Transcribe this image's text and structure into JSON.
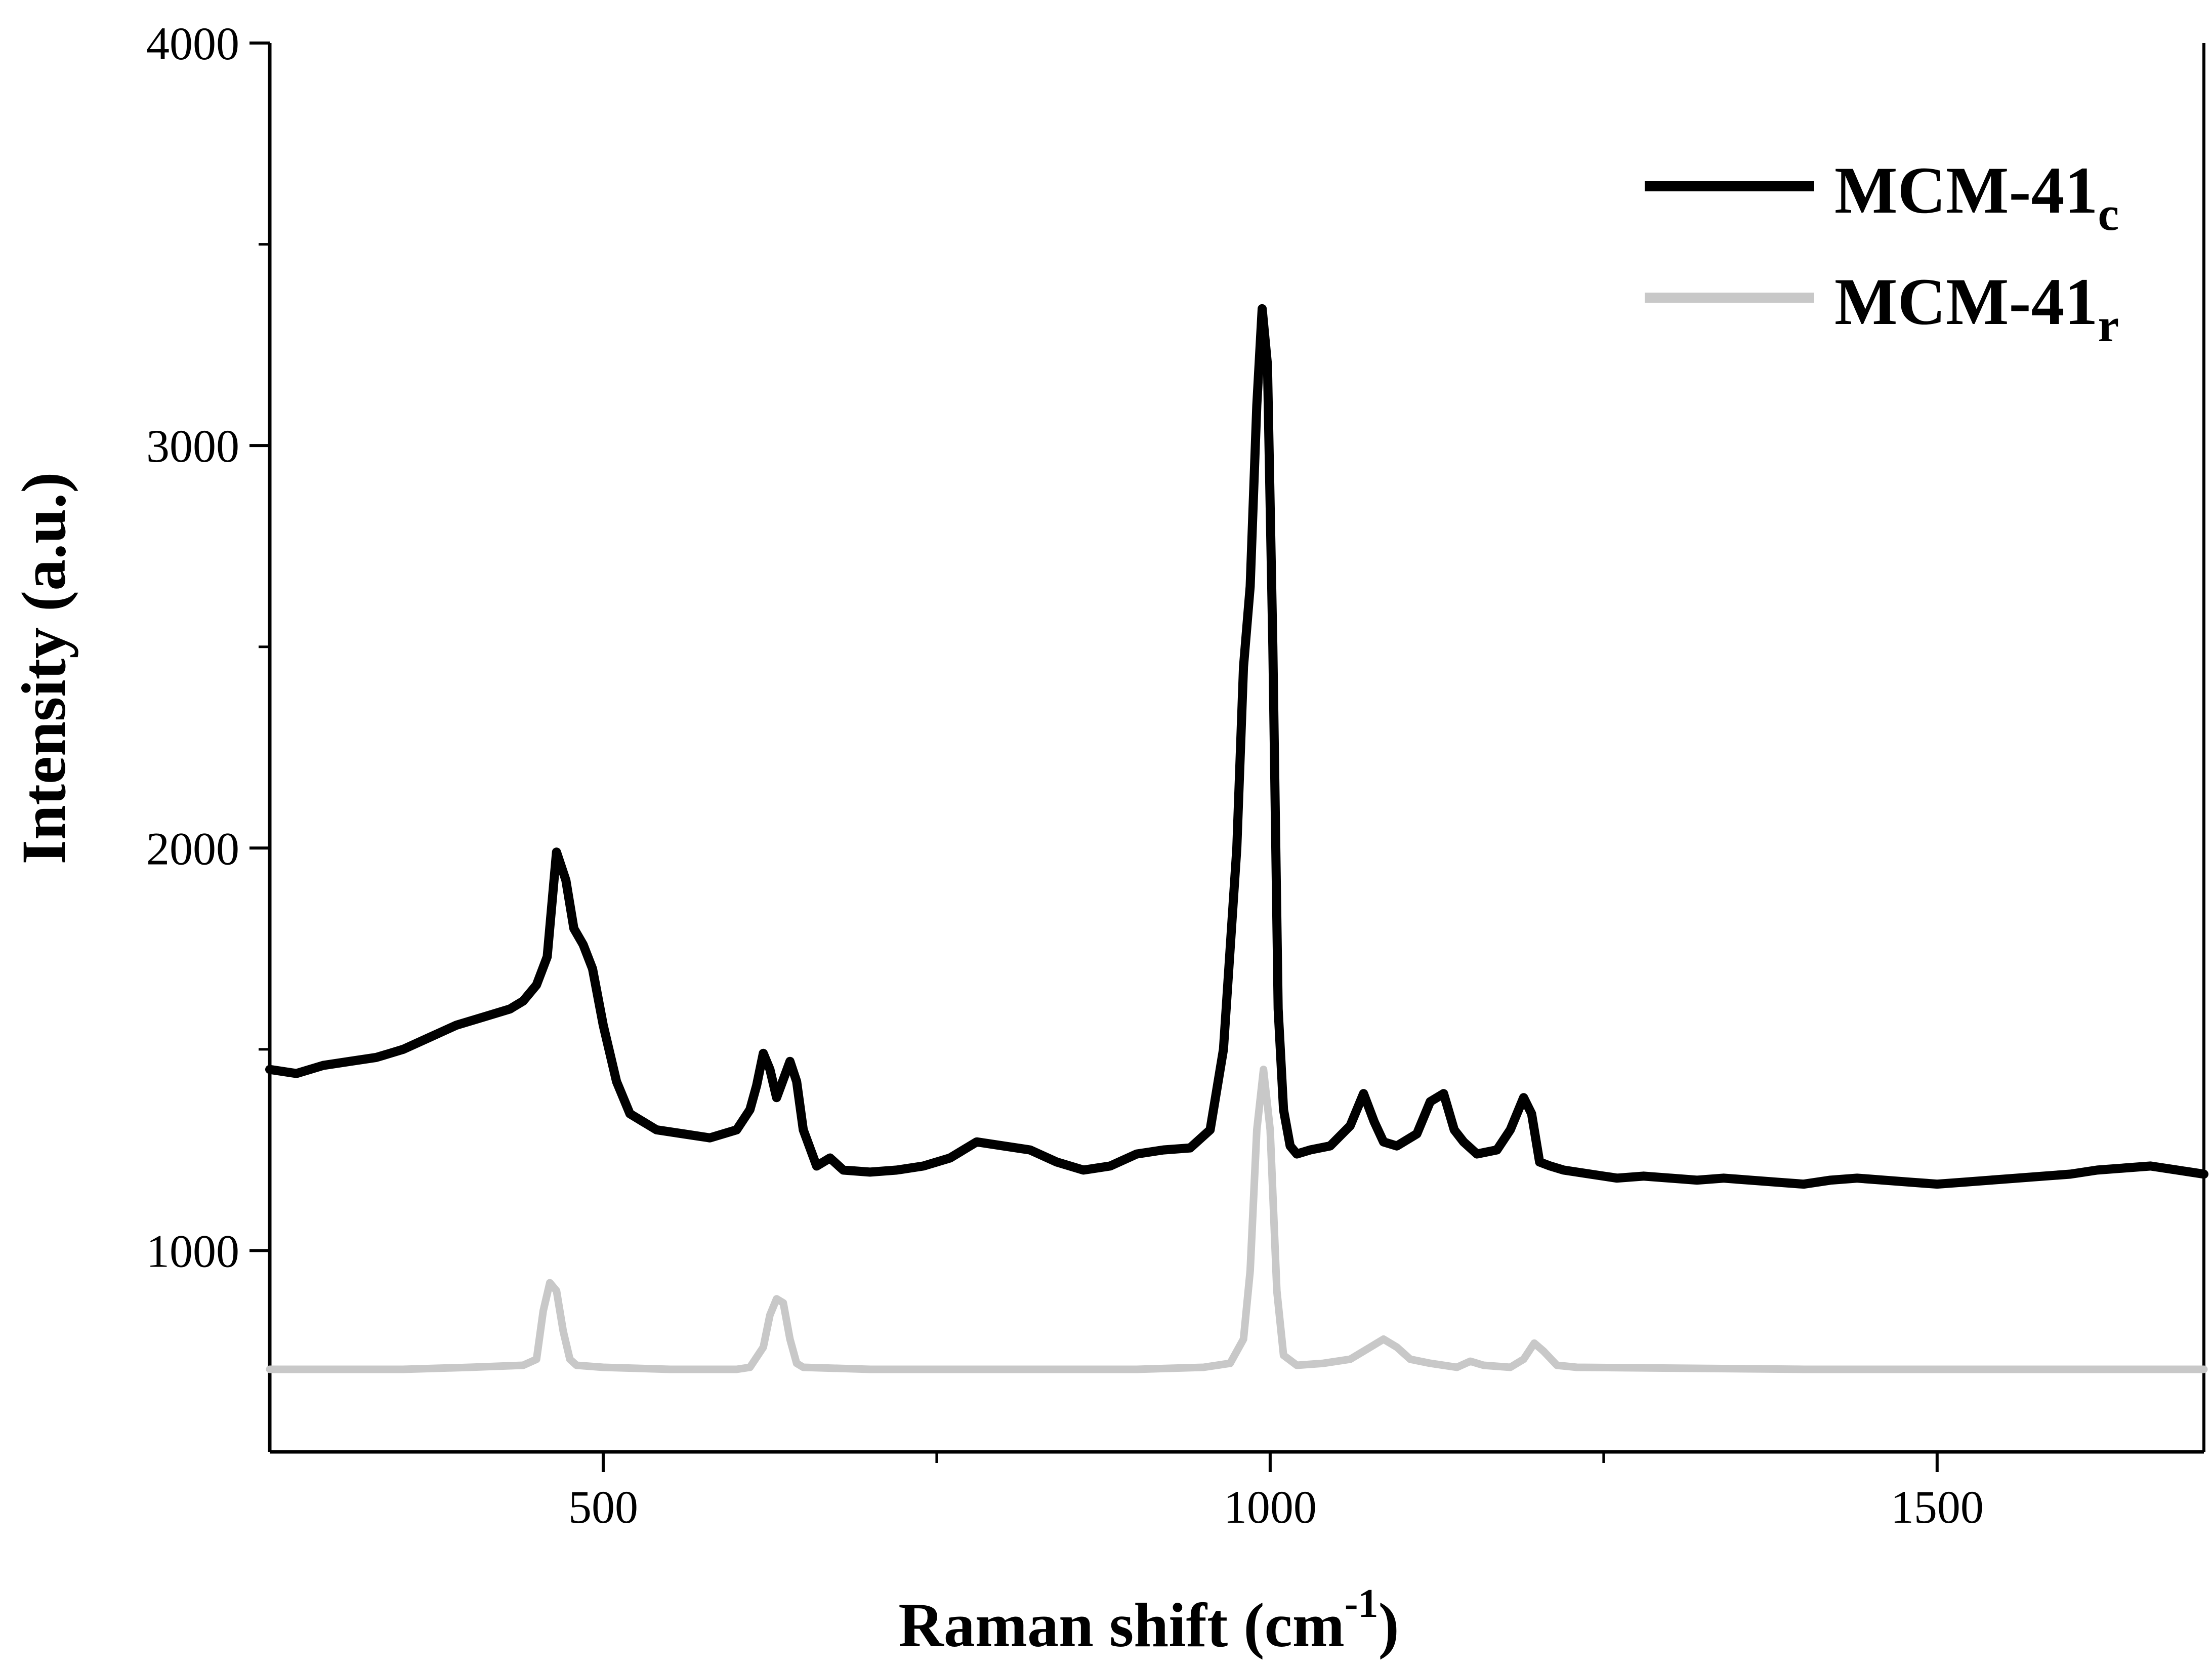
{
  "chart_data": {
    "type": "line",
    "title": "",
    "xlabel": "Raman shift (cm",
    "xlabel_sup": "-1",
    "xlabel_end": ")",
    "ylabel": "Intensity (a.u.)",
    "xlim": [
      250,
      1700
    ],
    "ylim": [
      500,
      4000
    ],
    "xticks": [
      500,
      1000,
      1500
    ],
    "xticks_minor": [
      750,
      1250
    ],
    "yticks": [
      1000,
      2000,
      3000,
      4000
    ],
    "yticks_minor": [
      1500,
      2500,
      3500
    ],
    "legend_position": "top-right",
    "series": [
      {
        "name": "MCM-41",
        "subscript": "c",
        "color": "#000000",
        "x": [
          250,
          270,
          290,
          310,
          330,
          350,
          370,
          390,
          410,
          430,
          440,
          450,
          458,
          465,
          472,
          478,
          485,
          492,
          500,
          510,
          520,
          530,
          540,
          560,
          580,
          600,
          610,
          615,
          620,
          625,
          630,
          640,
          645,
          650,
          660,
          670,
          680,
          700,
          720,
          740,
          760,
          780,
          800,
          820,
          840,
          860,
          880,
          900,
          920,
          940,
          955,
          965,
          975,
          980,
          985,
          990,
          994,
          998,
          1002,
          1006,
          1010,
          1015,
          1020,
          1030,
          1045,
          1060,
          1070,
          1078,
          1085,
          1095,
          1110,
          1120,
          1130,
          1138,
          1145,
          1155,
          1170,
          1180,
          1190,
          1196,
          1202,
          1210,
          1220,
          1240,
          1260,
          1280,
          1300,
          1320,
          1340,
          1360,
          1380,
          1400,
          1420,
          1440,
          1460,
          1480,
          1500,
          1520,
          1540,
          1560,
          1580,
          1600,
          1620,
          1640,
          1660,
          1680,
          1700
        ],
        "y": [
          1450,
          1440,
          1460,
          1470,
          1480,
          1500,
          1530,
          1560,
          1580,
          1600,
          1620,
          1660,
          1730,
          1990,
          1920,
          1800,
          1760,
          1700,
          1560,
          1420,
          1340,
          1320,
          1300,
          1290,
          1280,
          1300,
          1350,
          1410,
          1490,
          1450,
          1380,
          1470,
          1420,
          1300,
          1210,
          1230,
          1200,
          1195,
          1200,
          1210,
          1230,
          1270,
          1260,
          1250,
          1220,
          1200,
          1210,
          1240,
          1250,
          1255,
          1300,
          1500,
          2000,
          2450,
          2650,
          3100,
          3340,
          3200,
          2500,
          1600,
          1350,
          1260,
          1240,
          1250,
          1260,
          1310,
          1390,
          1320,
          1270,
          1260,
          1290,
          1370,
          1390,
          1300,
          1270,
          1240,
          1250,
          1300,
          1380,
          1340,
          1220,
          1210,
          1200,
          1190,
          1180,
          1185,
          1180,
          1175,
          1180,
          1175,
          1170,
          1165,
          1175,
          1180,
          1175,
          1170,
          1165,
          1170,
          1175,
          1180,
          1185,
          1190,
          1200,
          1205,
          1210,
          1200,
          1190
        ]
      },
      {
        "name": "MCM-41",
        "subscript": "r",
        "color": "#c8c8c8",
        "x": [
          250,
          300,
          350,
          400,
          440,
          450,
          455,
          460,
          465,
          470,
          475,
          480,
          500,
          550,
          600,
          610,
          620,
          625,
          630,
          635,
          640,
          645,
          650,
          700,
          800,
          900,
          950,
          970,
          980,
          985,
          990,
          995,
          1000,
          1005,
          1010,
          1020,
          1040,
          1060,
          1075,
          1085,
          1095,
          1105,
          1120,
          1140,
          1150,
          1160,
          1180,
          1190,
          1198,
          1205,
          1215,
          1230,
          1300,
          1400,
          1500,
          1600,
          1700
        ],
        "y": [
          705,
          705,
          705,
          710,
          715,
          730,
          850,
          920,
          900,
          800,
          730,
          715,
          710,
          705,
          705,
          710,
          760,
          840,
          880,
          870,
          780,
          720,
          710,
          705,
          705,
          705,
          710,
          720,
          780,
          950,
          1300,
          1450,
          1300,
          900,
          740,
          715,
          720,
          730,
          760,
          780,
          760,
          730,
          720,
          710,
          725,
          715,
          710,
          730,
          770,
          750,
          715,
          710,
          708,
          705,
          705,
          705,
          705
        ]
      }
    ]
  }
}
